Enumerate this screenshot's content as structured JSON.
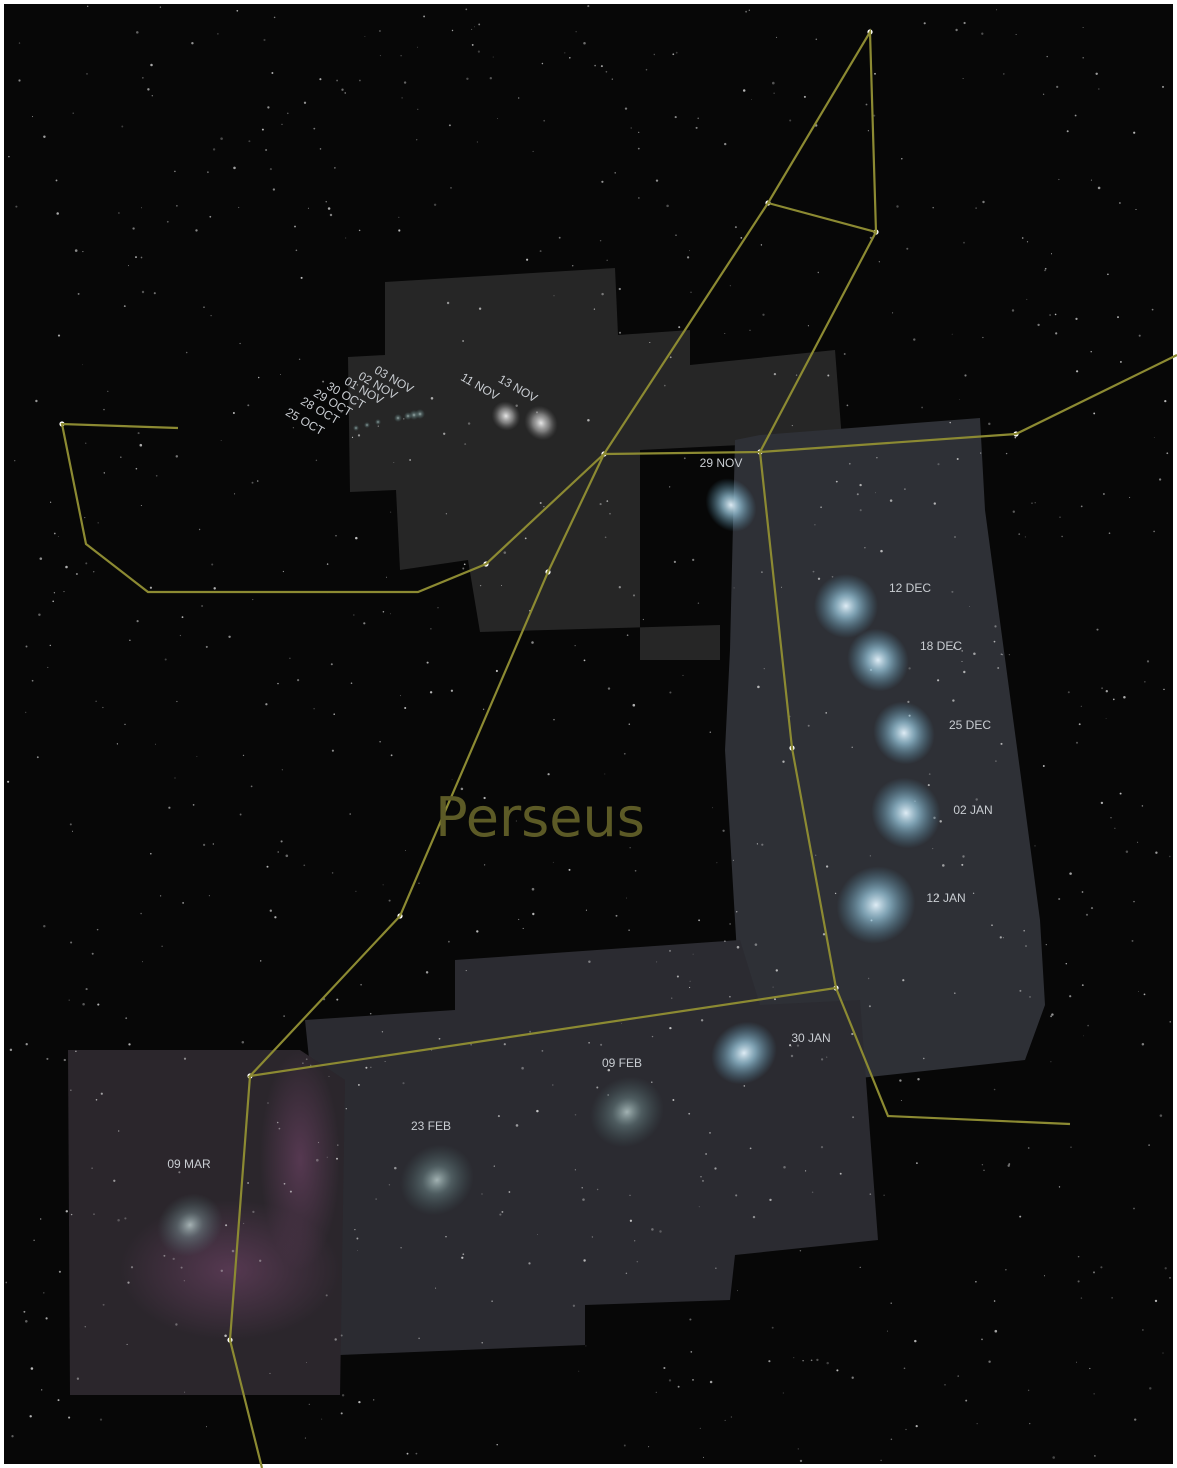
{
  "constellation": "Perseus",
  "comet_positions": [
    {
      "date": "25 OCT"
    },
    {
      "date": "28 OCT"
    },
    {
      "date": "29 OCT"
    },
    {
      "date": "30 OCT"
    },
    {
      "date": "01 NOV"
    },
    {
      "date": "02 NOV"
    },
    {
      "date": "03 NOV"
    },
    {
      "date": "11 NOV"
    },
    {
      "date": "13 NOV"
    },
    {
      "date": "29 NOV"
    },
    {
      "date": "12 DEC"
    },
    {
      "date": "18 DEC"
    },
    {
      "date": "25 DEC"
    },
    {
      "date": "02 JAN"
    },
    {
      "date": "12 JAN"
    },
    {
      "date": "30 JAN"
    },
    {
      "date": "09 FEB"
    },
    {
      "date": "23 FEB"
    },
    {
      "date": "09 MAR"
    }
  ]
}
